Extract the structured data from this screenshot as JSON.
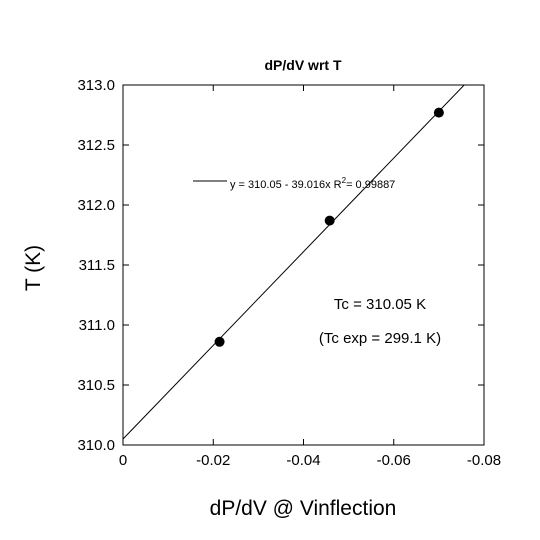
{
  "chart_data": {
    "type": "scatter",
    "title": "dP/dV wrt T",
    "xlabel": "dP/dV @ Vinflection",
    "ylabel": "T (K)",
    "xlim": [
      0,
      -0.08
    ],
    "ylim": [
      310.0,
      313.0
    ],
    "xticks": [
      0,
      -0.02,
      -0.04,
      -0.06,
      -0.08
    ],
    "xtick_labels": [
      "0",
      "-0.02",
      "-0.04",
      "-0.06",
      "-0.08"
    ],
    "yticks": [
      310.0,
      310.5,
      311.0,
      311.5,
      312.0,
      312.5,
      313.0
    ],
    "ytick_labels": [
      "310.0",
      "310.5",
      "311.0",
      "311.5",
      "312.0",
      "312.5",
      "313.0"
    ],
    "points": [
      {
        "x": -0.0214,
        "y": 310.86
      },
      {
        "x": -0.0458,
        "y": 311.87
      },
      {
        "x": -0.07,
        "y": 312.77
      }
    ],
    "fit": {
      "intercept": 310.05,
      "slope": -39.016,
      "equation_prefix": "y = 310.05 - 39.016x   R",
      "r2_sup": "2",
      "r2_value": "= 0.99887"
    },
    "annotations": [
      "Tc = 310.05 K",
      "(Tc exp = 299.1 K)"
    ],
    "grid": false
  }
}
